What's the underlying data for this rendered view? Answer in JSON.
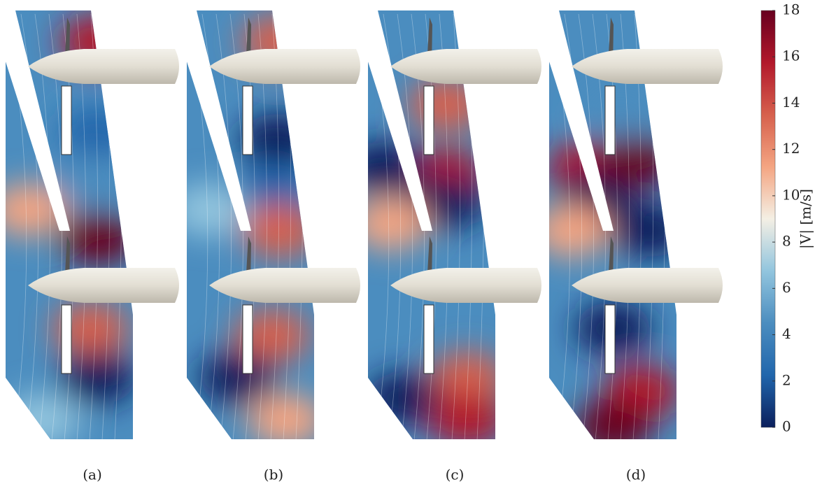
{
  "chart_data": {
    "type": "colorbar",
    "panel_labels": [
      "(a)",
      "(b)",
      "(c)",
      "(d)"
    ],
    "colorbar_label": "|V| [m/s]",
    "ylim": [
      0,
      18
    ],
    "yticks": [
      0,
      2,
      4,
      6,
      8,
      10,
      12,
      14,
      16,
      18
    ],
    "colormap": [
      "#0b1f5c",
      "#2166ac",
      "#4b8dbf",
      "#92c5de",
      "#f4efe4",
      "#f4a582",
      "#d6604d",
      "#b2182b",
      "#67001f"
    ]
  }
}
